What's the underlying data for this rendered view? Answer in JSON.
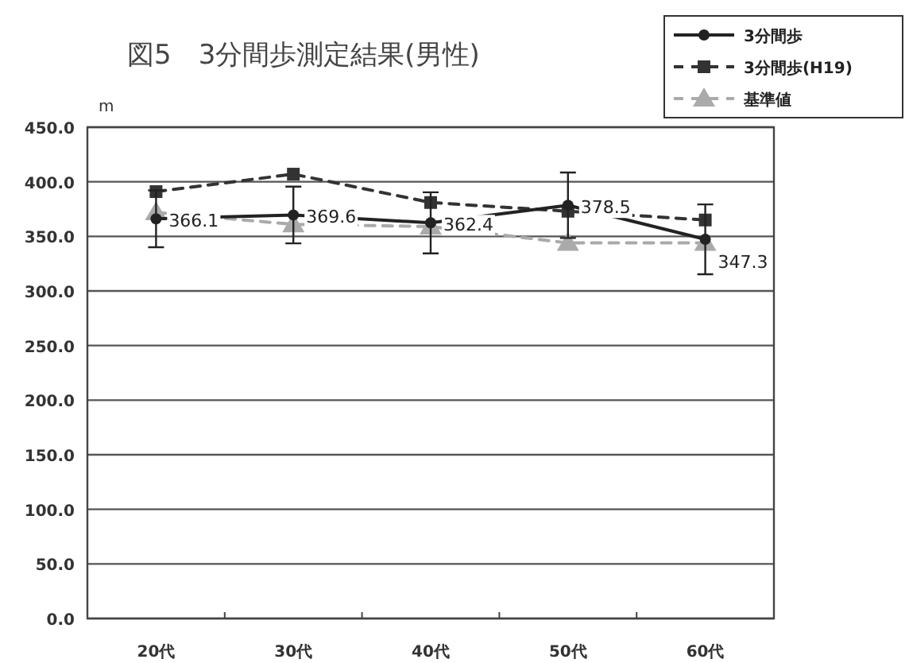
{
  "chart_data": {
    "type": "line",
    "title": "図5　3分間歩測定結果(男性)",
    "ylabel": "m",
    "categories": [
      "20代",
      "30代",
      "40代",
      "50代",
      "60代"
    ],
    "series": [
      {
        "name": "3分間歩",
        "color": "#222222",
        "marker": "circle",
        "line_style": "solid",
        "values": [
          366.1,
          369.6,
          362.4,
          378.5,
          347.3
        ],
        "value_labels": [
          "366.1",
          "369.6",
          "362.4",
          "378.5",
          "347.3"
        ],
        "errors": [
          26,
          26,
          28,
          30,
          32
        ]
      },
      {
        "name": "3分間歩(H19)",
        "color": "#333333",
        "marker": "square",
        "line_style": "dashed",
        "values": [
          391,
          407,
          381,
          373,
          365
        ]
      },
      {
        "name": "基準値",
        "color": "#aaaaaa",
        "marker": "triangle",
        "line_style": "dashed",
        "values": [
          372,
          361,
          359,
          344,
          344
        ]
      }
    ],
    "ylim": [
      0,
      450
    ],
    "yticks": [
      {
        "value": 0,
        "label": "0.0"
      },
      {
        "value": 50,
        "label": "50.0"
      },
      {
        "value": 100,
        "label": "100.0"
      },
      {
        "value": 150,
        "label": "150.0"
      },
      {
        "value": 200,
        "label": "200.0"
      },
      {
        "value": 250,
        "label": "250.0"
      },
      {
        "value": 300,
        "label": "300.0"
      },
      {
        "value": 350,
        "label": "350.0"
      },
      {
        "value": 400,
        "label": "400.0"
      },
      {
        "value": 450,
        "label": "450.0"
      }
    ],
    "grid": "y",
    "legend": "top right"
  }
}
